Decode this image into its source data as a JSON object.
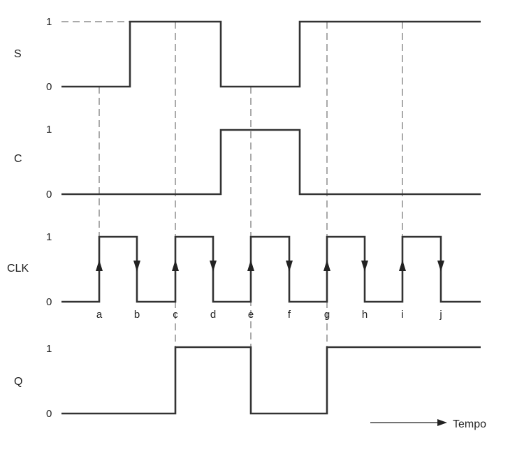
{
  "signals": [
    {
      "name": "S",
      "levels": [
        "1",
        "0"
      ],
      "transitions": [
        0,
        1,
        0,
        1
      ],
      "times": [
        "start",
        "b",
        "d",
        "f",
        "end"
      ]
    },
    {
      "name": "C",
      "levels": [
        "1",
        "0"
      ]
    },
    {
      "name": "CLK",
      "levels": [
        "1",
        "0"
      ]
    },
    {
      "name": "Q",
      "levels": [
        "1",
        "0"
      ]
    }
  ],
  "clock_edges": [
    "a",
    "b",
    "c",
    "d",
    "e",
    "f",
    "g",
    "h",
    "i",
    "j"
  ],
  "time_axis_label": "Tempo",
  "colors": {
    "line": "#333333",
    "dash": "#555555",
    "background": "#ffffff"
  }
}
